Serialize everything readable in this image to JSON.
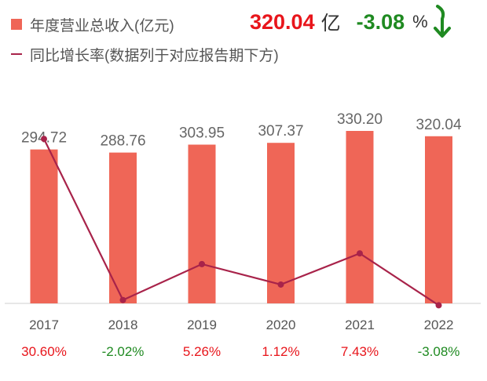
{
  "legend": {
    "revenue": "年度营业总收入(亿元)",
    "growth": "同比增长率(数据列于对应报告期下方)"
  },
  "headline": {
    "value": "320.04",
    "unit": "亿",
    "change": "-3.08",
    "pct": "%"
  },
  "colors": {
    "bar": "#ef6657",
    "line": "#a8234a",
    "positive": "#e8151b",
    "negative": "#1f8a21"
  },
  "chart_data": {
    "type": "bar",
    "categories": [
      "2017",
      "2018",
      "2019",
      "2020",
      "2021",
      "2022"
    ],
    "series": [
      {
        "name": "年度营业总收入(亿元)",
        "type": "bar",
        "values": [
          294.72,
          288.76,
          303.95,
          307.37,
          330.2,
          320.04
        ],
        "labels": [
          "294.72",
          "288.76",
          "303.95",
          "307.37",
          "330.20",
          "320.04"
        ]
      },
      {
        "name": "同比增长率(数据列于对应报告期下方)",
        "type": "line",
        "values": [
          30.6,
          -2.02,
          5.26,
          1.12,
          7.43,
          -3.08
        ],
        "labels": [
          "30.60%",
          "-2.02%",
          "5.26%",
          "1.12%",
          "7.43%",
          "-3.08%"
        ]
      }
    ],
    "title": "",
    "xlabel": "",
    "ylabel": ""
  }
}
